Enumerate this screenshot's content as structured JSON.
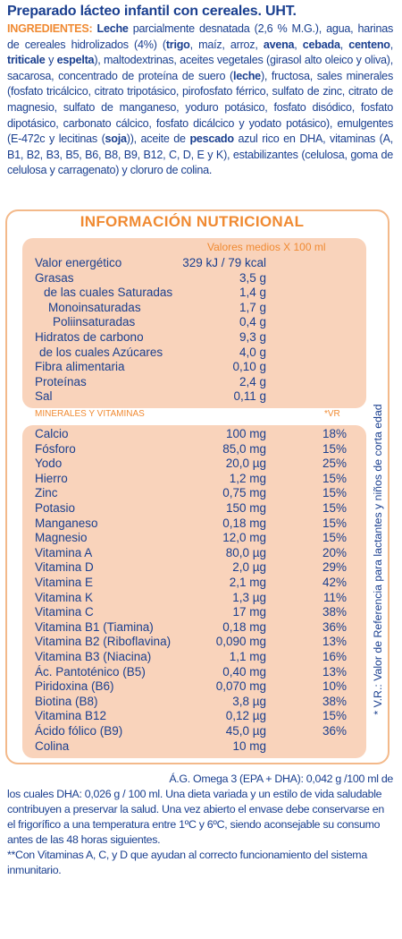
{
  "title": "Preparado lácteo infantil con cereales. UHT.",
  "ingredients": {
    "label": "INGREDIENTES:",
    "segments": [
      {
        "t": " ",
        "b": false
      },
      {
        "t": "Leche",
        "b": true
      },
      {
        "t": " parcialmente desnatada (2,6 % M.G.), agua, harinas de cereales hidrolizados (4%) (",
        "b": false
      },
      {
        "t": "trigo",
        "b": true
      },
      {
        "t": ", maíz, arroz, ",
        "b": false
      },
      {
        "t": "avena",
        "b": true
      },
      {
        "t": ", ",
        "b": false
      },
      {
        "t": "cebada",
        "b": true
      },
      {
        "t": ", ",
        "b": false
      },
      {
        "t": "centeno",
        "b": true
      },
      {
        "t": ", ",
        "b": false
      },
      {
        "t": "triticale",
        "b": true
      },
      {
        "t": " y ",
        "b": false
      },
      {
        "t": "espelta",
        "b": true
      },
      {
        "t": "), maltodextrinas, aceites vegetales (girasol alto oleico y oliva), sacarosa, concentrado de proteína de suero (",
        "b": false
      },
      {
        "t": "leche",
        "b": true
      },
      {
        "t": "), fructosa, sales minerales (fosfato tricálcico, citrato tripotásico, pirofosfato férrico, sulfato de zinc, citrato de magnesio, sulfato de manganeso, yoduro potásico, fosfato disódico, fosfato dipotásico, carbonato cálcico, fosfato dicálcico y yodato potásico), emulgentes (E-472c y lecitinas (",
        "b": false
      },
      {
        "t": "soja",
        "b": true
      },
      {
        "t": ")), aceite de ",
        "b": false
      },
      {
        "t": "pescado",
        "b": true
      },
      {
        "t": " azul rico en DHA, vitaminas (A, B1, B2, B3, B5, B6, B8, B9, B12, C, D, E y K), estabilizantes (celulosa, goma de celulosa y carragenato) y cloruro de colina.",
        "b": false
      }
    ]
  },
  "nutrition": {
    "title": "INFORMACIÓN NUTRICIONAL",
    "header": "Valores medios X 100 ml",
    "rows": [
      {
        "name": "Valor energético",
        "value": "329 kJ / 79 kcal"
      },
      {
        "name": "Grasas",
        "value": "3,5 g"
      },
      {
        "name": "de las cuales Saturadas",
        "value": "1,4 g"
      },
      {
        "name": "Monoinsaturadas",
        "value": "1,7 g"
      },
      {
        "name": "Poliinsaturadas",
        "value": "0,4 g"
      },
      {
        "name": "Hidratos de carbono",
        "value": "9,3 g"
      },
      {
        "name": "de los cuales Azúcares",
        "value": "4,0 g"
      },
      {
        "name": "Fibra alimentaria",
        "value": "0,10 g"
      },
      {
        "name": "Proteínas",
        "value": "2,4 g"
      },
      {
        "name": "Sal",
        "value": "0,11 g"
      }
    ],
    "minerals_header": "MINERALES Y VITAMINAS",
    "vr_header": "*VR",
    "minerals": [
      {
        "name": "Calcio",
        "value": "100 mg",
        "vr": "18%"
      },
      {
        "name": "Fósforo",
        "value": "85,0 mg",
        "vr": "15%"
      },
      {
        "name": "Yodo",
        "value": "20,0 µg",
        "vr": "25%"
      },
      {
        "name": "Hierro",
        "value": "1,2 mg",
        "vr": "15%"
      },
      {
        "name": "Zinc",
        "value": "0,75 mg",
        "vr": "15%"
      },
      {
        "name": "Potasio",
        "value": "150 mg",
        "vr": "15%"
      },
      {
        "name": "Manganeso",
        "value": "0,18 mg",
        "vr": "15%"
      },
      {
        "name": "Magnesio",
        "value": "12,0 mg",
        "vr": "15%"
      },
      {
        "name": "Vitamina A",
        "value": "80,0 µg",
        "vr": "20%"
      },
      {
        "name": "Vitamina D",
        "value": "2,0 µg",
        "vr": "29%"
      },
      {
        "name": "Vitamina E",
        "value": "2,1 mg",
        "vr": "42%"
      },
      {
        "name": "Vitamina K",
        "value": "1,3 µg",
        "vr": "11%"
      },
      {
        "name": "Vitamina C",
        "value": "17 mg",
        "vr": "38%"
      },
      {
        "name": "Vitamina B1 (Tiamina)",
        "value": "0,18 mg",
        "vr": "36%"
      },
      {
        "name": "Vitamina B2 (Riboflavina)",
        "value": "0,090 mg",
        "vr": "13%"
      },
      {
        "name": "Vitamina B3 (Niacina)",
        "value": "1,1 mg",
        "vr": "16%"
      },
      {
        "name": "Ác. Pantoténico (B5)",
        "value": "0,40 mg",
        "vr": "13%"
      },
      {
        "name": "Piridoxina (B6)",
        "value": "0,070 mg",
        "vr": "10%"
      },
      {
        "name": "Biotina (B8)",
        "value": "3,8 µg",
        "vr": "38%"
      },
      {
        "name": "Vitamina B12",
        "value": "0,12 µg",
        "vr": "15%"
      },
      {
        "name": "Ácido fólico (B9)",
        "value": "45,0 µg",
        "vr": "36%"
      },
      {
        "name": "Colina",
        "value": "10 mg",
        "vr": ""
      }
    ],
    "side_note": "* V.R.: Valor de Referencia para lactantes y niños de corta edad"
  },
  "footer": {
    "line1": "Á.G. Omega 3 (EPA + DHA): 0,042 g /100 ml de",
    "line2": "los cuales DHA: 0,026 g / 100 ml. Una dieta variada y un estilo de vida saludable contribuyen a preservar la salud. Una vez abierto el envase debe conservarse en el frigorífico a una temperatura entre 1ºC y 6ºC, siendo aconsejable su consumo antes de las 48 horas siguientes.",
    "line3": "**Con Vitaminas A, C, y D que ayudan al correcto funcionamiento del sistema inmunitario."
  },
  "colors": {
    "blue": "#1a3f8f",
    "orange": "#f08a32",
    "peach": "#f9d3bb"
  }
}
